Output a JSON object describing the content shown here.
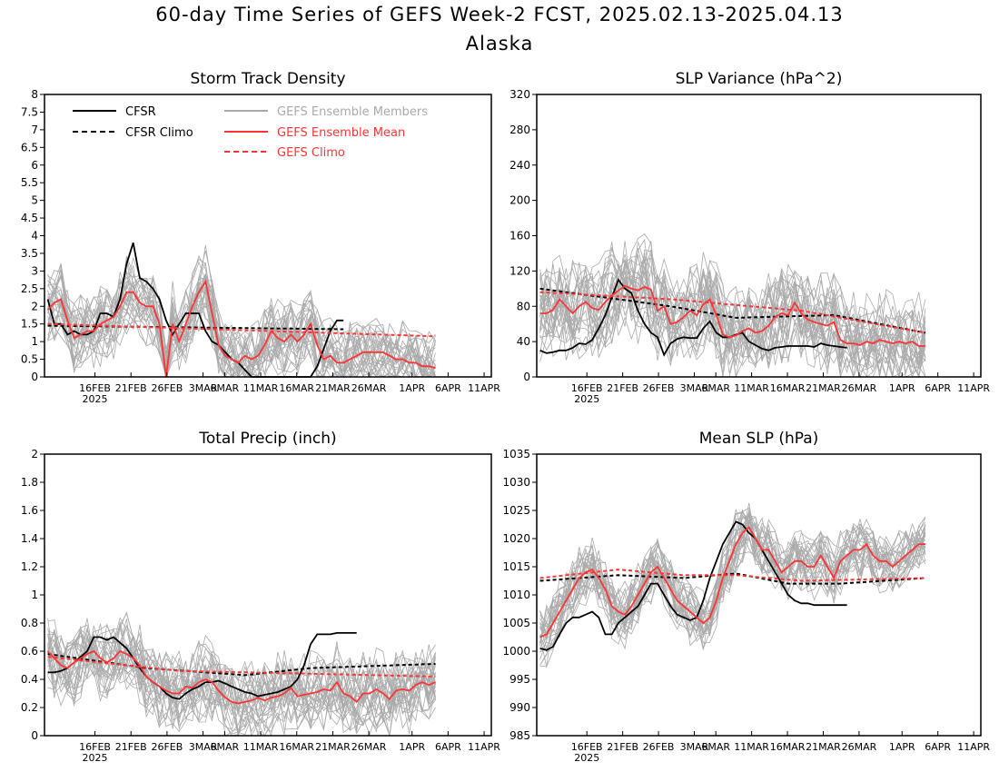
{
  "title": "60-day Time Series of GEFS Week-2 FCST, 2025.02.13-2025.04.13",
  "subtitle": "Alaska",
  "colors": {
    "cfsr": "#000000",
    "gefs": "#ff3333",
    "members": "#aaaaaa",
    "axis": "#000000"
  },
  "legend": {
    "cfsr": "CFSR",
    "cfsr_climo": "CFSR Climo",
    "members": "GEFS Ensemble Members",
    "gefs_mean": "GEFS Ensemble Mean",
    "gefs_climo": "GEFS Climo"
  },
  "x_ticks": [
    "16FEB",
    "21FEB",
    "26FEB",
    "3MAR",
    "6MAR",
    "11MAR",
    "16MAR",
    "21MAR",
    "26MAR",
    "1APR",
    "6APR",
    "11APR"
  ],
  "x_year_label": "2025",
  "chart_data": [
    {
      "type": "line",
      "title": "Storm Track Density",
      "ylim": [
        0,
        8
      ],
      "yticks": [
        "0",
        "0.5",
        "1",
        "1.5",
        "2",
        "2.5",
        "3",
        "3.5",
        "4",
        "4.5",
        "5",
        "5.5",
        "6",
        "6.5",
        "7",
        "7.5",
        "8"
      ],
      "legend": "top-left",
      "series": [
        {
          "name": "CFSR",
          "x": [
            0,
            1,
            2,
            3,
            4,
            5,
            6,
            7,
            8,
            9,
            10,
            11,
            12,
            13,
            14,
            15,
            16,
            17,
            18,
            19,
            20,
            21,
            22,
            23,
            24,
            25,
            26,
            27,
            28,
            29,
            30,
            31,
            32,
            33,
            34,
            35,
            36,
            37,
            38,
            39,
            40,
            41,
            42,
            43,
            44,
            45
          ],
          "values": [
            2.2,
            1.5,
            1.5,
            1.2,
            1.3,
            1.2,
            1.2,
            1.3,
            1.8,
            1.8,
            1.7,
            2.2,
            3.2,
            3.8,
            2.8,
            2.7,
            2.5,
            2.2,
            1.6,
            1.2,
            1.5,
            1.8,
            1.8,
            1.8,
            1.3,
            1.0,
            0.9,
            0.7,
            0.5,
            0.4,
            0.2,
            0.0,
            0.0,
            0.0,
            0.0,
            0.0,
            0.0,
            0.0,
            0.0,
            0.0,
            0.0,
            0.3,
            0.8,
            1.3,
            1.6,
            1.6
          ]
        },
        {
          "name": "CFSR Climo",
          "x": [
            0,
            45
          ],
          "values": [
            1.45,
            1.35
          ]
        },
        {
          "name": "GEFS Ensemble Mean",
          "x": [
            0,
            1,
            2,
            3,
            4,
            5,
            6,
            7,
            8,
            9,
            10,
            11,
            12,
            13,
            14,
            15,
            16,
            17,
            18,
            19,
            20,
            21,
            22,
            23,
            24,
            25,
            26,
            27,
            28,
            29,
            30,
            31,
            32,
            33,
            34,
            35,
            36,
            37,
            38,
            39,
            40,
            41,
            42,
            43,
            44,
            45,
            46,
            47,
            48,
            49,
            50,
            51,
            52,
            53,
            54,
            55,
            56,
            57,
            58,
            59
          ],
          "values": [
            1.9,
            2.1,
            2.2,
            1.6,
            1.1,
            1.2,
            1.3,
            1.3,
            1.5,
            1.6,
            1.7,
            2.0,
            2.4,
            2.4,
            2.1,
            2.0,
            2.0,
            1.5,
            0.0,
            1.5,
            1.0,
            1.5,
            2.0,
            2.4,
            2.7,
            1.8,
            0.9,
            0.6,
            0.5,
            0.4,
            0.6,
            0.5,
            0.6,
            0.9,
            1.3,
            1.1,
            1.0,
            1.2,
            1.0,
            1.2,
            1.5,
            0.9,
            0.5,
            0.6,
            0.4,
            0.4,
            0.5,
            0.6,
            0.7,
            0.7,
            0.7,
            0.7,
            0.6,
            0.5,
            0.5,
            0.4,
            0.4,
            0.3,
            0.3,
            0.25
          ]
        },
        {
          "name": "GEFS Climo",
          "x": [
            0,
            59
          ],
          "values": [
            1.5,
            1.15
          ]
        }
      ],
      "members_band": {
        "mean_offset": [
          0,
          1.2
        ],
        "spread": 1.6
      }
    },
    {
      "type": "line",
      "title": "SLP Variance (hPa^2)",
      "ylim": [
        0,
        320
      ],
      "yticks": [
        "0",
        "40",
        "80",
        "120",
        "160",
        "200",
        "240",
        "280",
        "320"
      ],
      "series": [
        {
          "name": "CFSR",
          "x": [
            0,
            1,
            2,
            3,
            4,
            5,
            6,
            7,
            8,
            9,
            10,
            11,
            12,
            13,
            14,
            15,
            16,
            17,
            18,
            19,
            20,
            21,
            22,
            23,
            24,
            25,
            26,
            27,
            28,
            29,
            30,
            31,
            32,
            33,
            34,
            35,
            36,
            37,
            38,
            39,
            40,
            41,
            42,
            43,
            44,
            45,
            46,
            47
          ],
          "values": [
            30,
            27,
            28,
            30,
            30,
            33,
            38,
            37,
            42,
            55,
            70,
            90,
            110,
            100,
            95,
            75,
            60,
            50,
            45,
            25,
            38,
            43,
            45,
            44,
            44,
            55,
            63,
            50,
            45,
            45,
            48,
            50,
            40,
            36,
            32,
            30,
            33,
            34,
            35,
            35,
            35,
            35,
            34,
            38,
            36,
            35,
            34,
            33
          ]
        },
        {
          "name": "CFSR Climo",
          "x": [
            0,
            20,
            30,
            45,
            59
          ],
          "values": [
            100,
            80,
            67,
            70,
            50
          ]
        },
        {
          "name": "GEFS Ensemble Mean",
          "x": [
            0,
            1,
            2,
            3,
            4,
            5,
            6,
            7,
            8,
            9,
            10,
            11,
            12,
            13,
            14,
            15,
            16,
            17,
            18,
            19,
            20,
            21,
            22,
            23,
            24,
            25,
            26,
            27,
            28,
            29,
            30,
            31,
            32,
            33,
            34,
            35,
            36,
            37,
            38,
            39,
            40,
            41,
            42,
            43,
            44,
            45,
            46,
            47,
            48,
            49,
            50,
            51,
            52,
            53,
            54,
            55,
            56,
            57,
            58,
            59
          ],
          "values": [
            72,
            72,
            76,
            88,
            80,
            72,
            80,
            85,
            78,
            76,
            85,
            92,
            98,
            103,
            100,
            98,
            102,
            99,
            75,
            80,
            60,
            62,
            68,
            75,
            70,
            82,
            88,
            70,
            48,
            45,
            47,
            52,
            55,
            50,
            52,
            58,
            68,
            72,
            70,
            84,
            72,
            65,
            62,
            60,
            58,
            62,
            42,
            38,
            38,
            36,
            40,
            38,
            42,
            40,
            38,
            40,
            38,
            40,
            35,
            35
          ]
        },
        {
          "name": "GEFS Climo",
          "x": [
            0,
            20,
            40,
            59
          ],
          "values": [
            96,
            88,
            75,
            50
          ]
        }
      ]
    },
    {
      "type": "line",
      "title": "Total Precip (inch)",
      "ylim": [
        0,
        2
      ],
      "yticks": [
        "0",
        "0.2",
        "0.4",
        "0.6",
        "0.8",
        "1",
        "1.2",
        "1.4",
        "1.6",
        "1.8",
        "2"
      ],
      "series": [
        {
          "name": "CFSR",
          "x": [
            0,
            1,
            2,
            3,
            4,
            5,
            6,
            7,
            8,
            9,
            10,
            11,
            12,
            13,
            14,
            15,
            16,
            17,
            18,
            19,
            20,
            21,
            22,
            23,
            24,
            25,
            26,
            27,
            28,
            29,
            30,
            31,
            32,
            33,
            34,
            35,
            36,
            37,
            38,
            39,
            40,
            41,
            42,
            43,
            44,
            45,
            46,
            47
          ],
          "values": [
            0.45,
            0.45,
            0.46,
            0.48,
            0.52,
            0.56,
            0.6,
            0.7,
            0.7,
            0.68,
            0.7,
            0.66,
            0.62,
            0.55,
            0.48,
            0.42,
            0.38,
            0.35,
            0.3,
            0.27,
            0.26,
            0.3,
            0.33,
            0.35,
            0.38,
            0.38,
            0.39,
            0.37,
            0.35,
            0.33,
            0.31,
            0.3,
            0.28,
            0.29,
            0.3,
            0.31,
            0.33,
            0.35,
            0.4,
            0.5,
            0.65,
            0.72,
            0.72,
            0.72,
            0.73,
            0.73,
            0.73,
            0.73
          ]
        },
        {
          "name": "CFSR Climo",
          "x": [
            0,
            15,
            30,
            40,
            59
          ],
          "values": [
            0.58,
            0.48,
            0.43,
            0.48,
            0.51
          ]
        },
        {
          "name": "GEFS Ensemble Mean",
          "x": [
            0,
            1,
            2,
            3,
            4,
            5,
            6,
            7,
            8,
            9,
            10,
            11,
            12,
            13,
            14,
            15,
            16,
            17,
            18,
            19,
            20,
            21,
            22,
            23,
            24,
            25,
            26,
            27,
            28,
            29,
            30,
            31,
            32,
            33,
            34,
            35,
            36,
            37,
            38,
            39,
            40,
            41,
            42,
            43,
            44,
            45,
            46,
            47,
            48,
            49,
            50,
            51,
            52,
            53,
            54,
            55,
            56,
            57,
            58,
            59
          ],
          "values": [
            0.6,
            0.55,
            0.5,
            0.48,
            0.52,
            0.55,
            0.58,
            0.6,
            0.55,
            0.52,
            0.55,
            0.6,
            0.58,
            0.55,
            0.5,
            0.42,
            0.38,
            0.35,
            0.32,
            0.3,
            0.3,
            0.35,
            0.34,
            0.38,
            0.4,
            0.38,
            0.32,
            0.27,
            0.24,
            0.23,
            0.24,
            0.25,
            0.27,
            0.25,
            0.27,
            0.28,
            0.3,
            0.34,
            0.28,
            0.29,
            0.3,
            0.31,
            0.33,
            0.32,
            0.38,
            0.3,
            0.28,
            0.24,
            0.3,
            0.3,
            0.33,
            0.3,
            0.26,
            0.32,
            0.33,
            0.32,
            0.36,
            0.38,
            0.36,
            0.38
          ]
        },
        {
          "name": "GEFS Climo",
          "x": [
            0,
            20,
            40,
            59
          ],
          "values": [
            0.56,
            0.46,
            0.44,
            0.42
          ]
        }
      ]
    },
    {
      "type": "line",
      "title": "Mean SLP (hPa)",
      "ylim": [
        985,
        1035
      ],
      "yticks": [
        "985",
        "990",
        "995",
        "1000",
        "1005",
        "1010",
        "1015",
        "1020",
        "1025",
        "1030",
        "1035"
      ],
      "series": [
        {
          "name": "CFSR",
          "x": [
            0,
            1,
            2,
            3,
            4,
            5,
            6,
            7,
            8,
            9,
            10,
            11,
            12,
            13,
            14,
            15,
            16,
            17,
            18,
            19,
            20,
            21,
            22,
            23,
            24,
            25,
            26,
            27,
            28,
            29,
            30,
            31,
            32,
            33,
            34,
            35,
            36,
            37,
            38,
            39,
            40,
            41,
            42,
            43,
            44,
            45,
            46,
            47
          ],
          "values": [
            1000.5,
            1000.2,
            1000.8,
            1003,
            1005,
            1006,
            1006,
            1006.5,
            1007,
            1006,
            1003,
            1003,
            1005,
            1006,
            1007,
            1008,
            1010,
            1012,
            1012,
            1010,
            1008,
            1006.5,
            1006,
            1005.5,
            1006,
            1009,
            1013,
            1016,
            1019,
            1021,
            1023,
            1022.5,
            1021,
            1020,
            1018,
            1016,
            1014,
            1012,
            1010,
            1009,
            1008.5,
            1008.5,
            1008.2,
            1008.2,
            1008.2,
            1008.2,
            1008.2,
            1008.2
          ]
        },
        {
          "name": "CFSR Climo",
          "x": [
            0,
            12,
            22,
            30,
            38,
            46,
            59
          ],
          "values": [
            1012.5,
            1013.5,
            1013,
            1013.8,
            1012,
            1012,
            1013
          ]
        },
        {
          "name": "GEFS Ensemble Mean",
          "x": [
            0,
            1,
            2,
            3,
            4,
            5,
            6,
            7,
            8,
            9,
            10,
            11,
            12,
            13,
            14,
            15,
            16,
            17,
            18,
            19,
            20,
            21,
            22,
            23,
            24,
            25,
            26,
            27,
            28,
            29,
            30,
            31,
            32,
            33,
            34,
            35,
            36,
            37,
            38,
            39,
            40,
            41,
            42,
            43,
            44,
            45,
            46,
            47,
            48,
            49,
            50,
            51,
            52,
            53,
            54,
            55,
            56,
            57,
            58,
            59
          ],
          "values": [
            1002.5,
            1003,
            1005,
            1007,
            1009,
            1011,
            1013,
            1014,
            1014.5,
            1013,
            1011,
            1008,
            1007,
            1006.5,
            1008,
            1010,
            1012,
            1014,
            1015,
            1013,
            1011,
            1009,
            1008,
            1007,
            1006,
            1005,
            1006,
            1009,
            1013,
            1016,
            1019,
            1021,
            1022,
            1020,
            1018,
            1018,
            1016,
            1014,
            1015,
            1016,
            1016,
            1015,
            1015,
            1017,
            1015,
            1013,
            1016,
            1017,
            1018,
            1018,
            1019,
            1017,
            1016,
            1016,
            1015,
            1016,
            1017,
            1018,
            1019,
            1019
          ]
        },
        {
          "name": "GEFS Climo",
          "x": [
            0,
            12,
            22,
            30,
            40,
            59
          ],
          "values": [
            1013,
            1014.5,
            1013.5,
            1013.5,
            1012.5,
            1013
          ]
        }
      ]
    }
  ]
}
